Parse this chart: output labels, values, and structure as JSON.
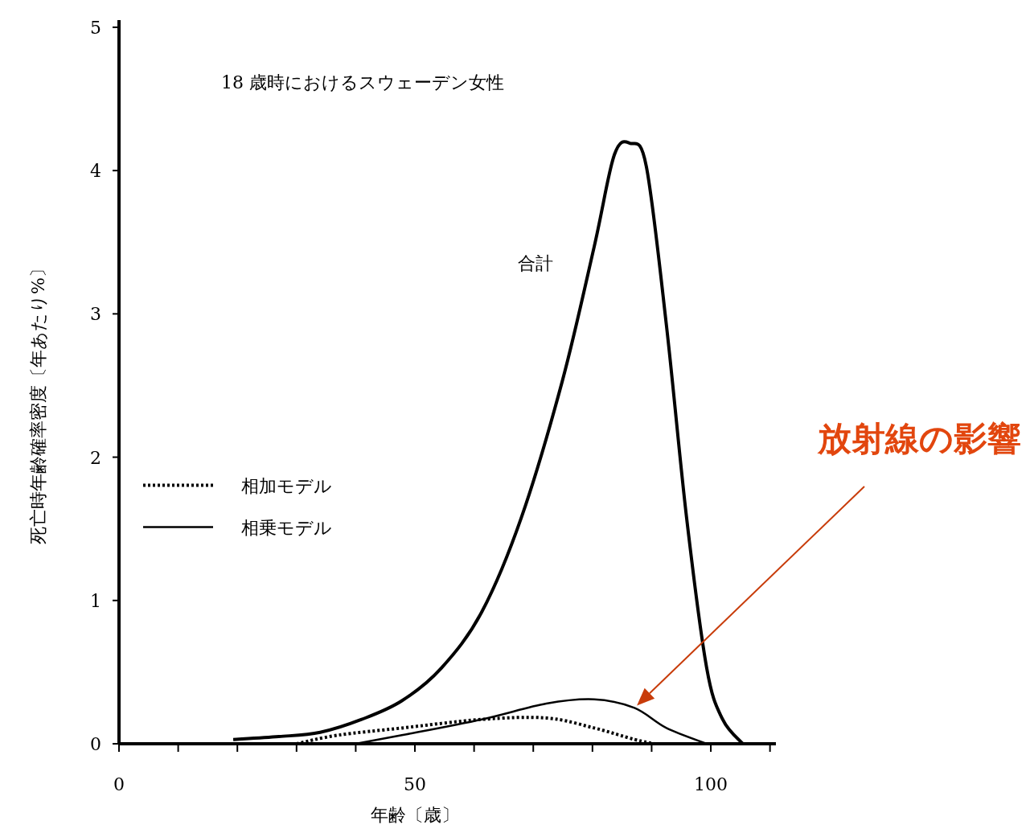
{
  "chart_data": {
    "type": "line",
    "title": "18 歳時におけるスウェーデン女性",
    "xlabel": "年齢〔歳〕",
    "ylabel": "死亡時年齢確率密度〔年あたり%〕",
    "xlim": [
      0,
      111
    ],
    "ylim": [
      0,
      5.05
    ],
    "xticks": [
      0,
      {
        "value": 10,
        "label": null
      },
      {
        "value": 20,
        "label": null
      },
      {
        "value": 30,
        "label": null
      },
      {
        "value": 40,
        "label": null
      },
      50,
      {
        "value": 60,
        "label": null
      },
      {
        "value": 70,
        "label": null
      },
      {
        "value": 80,
        "label": null
      },
      {
        "value": 90,
        "label": null
      },
      100,
      {
        "value": 110,
        "label": null
      }
    ],
    "yticks": [
      0,
      1,
      2,
      3,
      4,
      5
    ],
    "grid": false,
    "legend": "left",
    "marker": "none",
    "series": [
      {
        "name": "合計",
        "color": "#000000",
        "line_style": "solid",
        "x": [
          19.3,
          27,
          34,
          41,
          47.8,
          54.5,
          61.3,
          68,
          74.9,
          80.3,
          83.7,
          86.4,
          89.1,
          92.5,
          95.9,
          99.3,
          102,
          105.4
        ],
        "values": [
          0.03,
          0.05,
          0.08,
          0.17,
          0.3,
          0.53,
          0.92,
          1.58,
          2.53,
          3.47,
          4.11,
          4.19,
          4.03,
          2.92,
          1.58,
          0.53,
          0.17,
          0
        ]
      },
      {
        "name": "相加モデル",
        "color": "#000000",
        "line_style": "dotted",
        "x": [
          30,
          37,
          47.8,
          61.3,
          72.2,
          80.3,
          87.1,
          90.5
        ],
        "values": [
          0,
          0.06,
          0.11,
          0.17,
          0.18,
          0.11,
          0.03,
          0
        ]
      },
      {
        "name": "相乗モデル",
        "color": "#000000",
        "line_style": "solid",
        "x": [
          40,
          47.8,
          61.3,
          72.2,
          80.3,
          87.1,
          92.5,
          99.3
        ],
        "values": [
          0,
          0.06,
          0.17,
          0.28,
          0.31,
          0.25,
          0.11,
          0
        ]
      }
    ],
    "annotations": [
      "放射線の影響"
    ]
  }
}
